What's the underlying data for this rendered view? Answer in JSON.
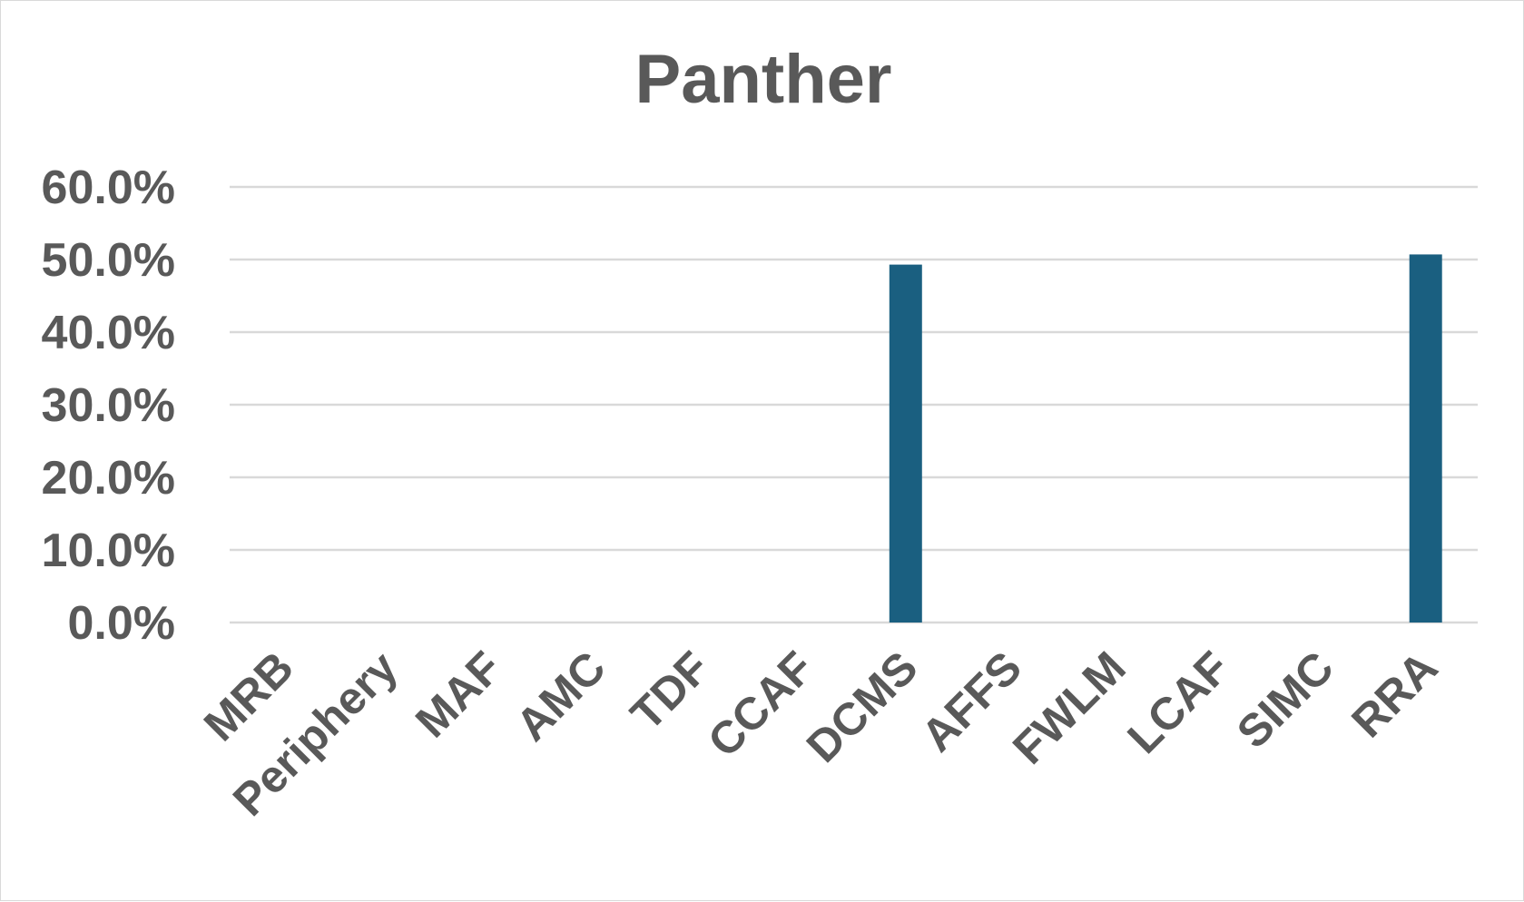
{
  "chart_data": {
    "type": "bar",
    "title": "Panther",
    "xlabel": "",
    "ylabel": "",
    "categories": [
      "MRB",
      "Periphery",
      "MAF",
      "AMC",
      "TDF",
      "CCAF",
      "DCMS",
      "AFFS",
      "FWLM",
      "LCAF",
      "SIMC",
      "RRA"
    ],
    "values": [
      0,
      0,
      0,
      0,
      0,
      0,
      49.3,
      0,
      0,
      0,
      0,
      50.7
    ],
    "ylim": [
      0,
      60
    ],
    "yticks": [
      "0.0%",
      "10.0%",
      "20.0%",
      "30.0%",
      "40.0%",
      "50.0%",
      "60.0%"
    ],
    "grid": true,
    "legend": "none",
    "bar_color": "#1a5f80"
  }
}
